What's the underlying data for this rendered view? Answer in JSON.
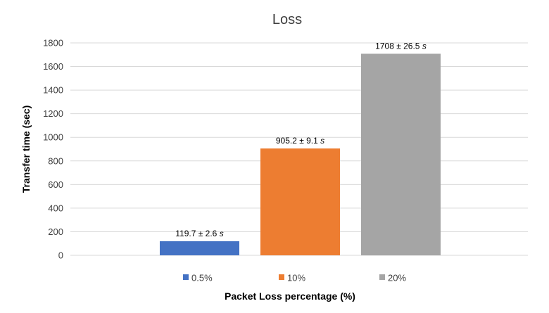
{
  "chart_data": {
    "type": "bar",
    "title": "Loss",
    "xlabel": "Packet Loss percentage (%)",
    "ylabel": "Transfer time (sec)",
    "ylim": [
      0,
      1800
    ],
    "yticks": [
      0,
      200,
      400,
      600,
      800,
      1000,
      1200,
      1400,
      1600,
      1800
    ],
    "ytick_labels": [
      "0",
      "200",
      "400",
      "600",
      "800",
      "1000",
      "1200",
      "1400",
      "1600",
      "1800"
    ],
    "grid": true,
    "legend_position": "bottom",
    "series": [
      {
        "name": "0.5%",
        "value": 119.7,
        "label": "119.7 ± 2.6 s",
        "color": "#4472c4"
      },
      {
        "name": "10%",
        "value": 905.2,
        "label": "905.2 ± 9.1 s",
        "color": "#ed7d31"
      },
      {
        "name": "20%",
        "value": 1708,
        "label": "1708 ± 26.5 s",
        "color": "#a5a5a5"
      }
    ]
  }
}
